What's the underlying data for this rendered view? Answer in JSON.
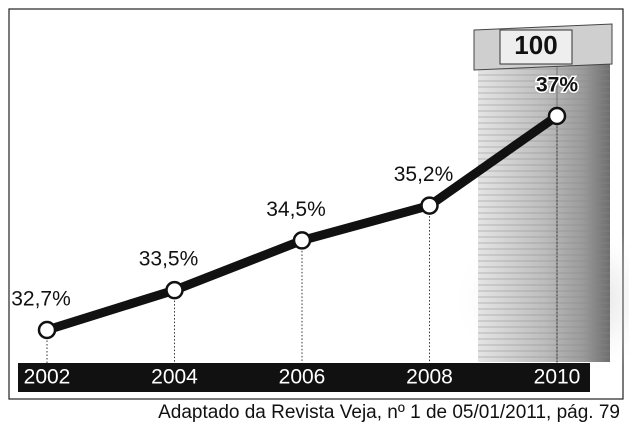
{
  "chart_data": {
    "type": "line",
    "categories": [
      "2002",
      "2004",
      "2006",
      "2008",
      "2010"
    ],
    "values": [
      32.7,
      33.5,
      34.5,
      35.2,
      37
    ],
    "value_labels": [
      "32,7%",
      "33,5%",
      "34,5%",
      "35,2%",
      "37%"
    ],
    "color": "#111111",
    "caption": "Adaptado da Revista Veja, nº 1 de 05/01/2011, pág. 79"
  }
}
